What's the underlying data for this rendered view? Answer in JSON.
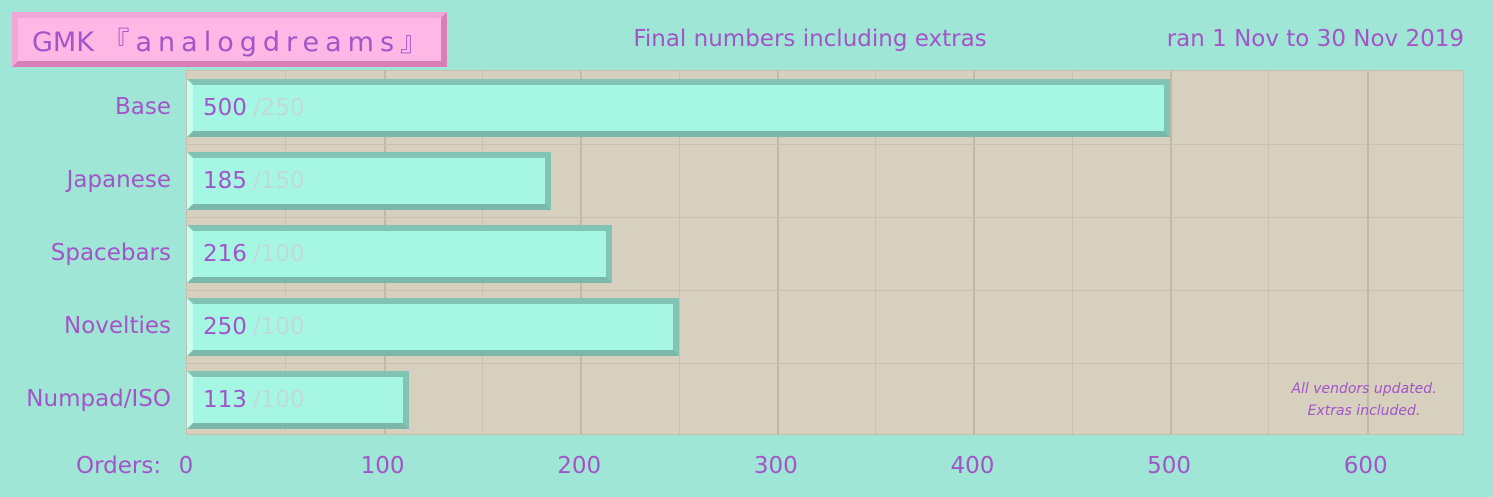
{
  "header": {
    "title_prefix": "GMK ",
    "title_name": "『analogdreams』",
    "subtitle": "Final numbers including extras",
    "date_range": "ran 1 Nov to 30 Nov 2019"
  },
  "note": {
    "line1": "All vendors updated.",
    "line2": "Extras included."
  },
  "colors": {
    "background": "#a0e6d6",
    "plot_background": "#d7d0bf",
    "bar_fill": "#a6f6e4",
    "text": "#a255c8",
    "title_badge": "#ffb8e6",
    "cap_text": "#c0dad9"
  },
  "chart_data": {
    "type": "bar",
    "orientation": "horizontal",
    "title": "GMK 『analogdreams』",
    "subtitle": "Final numbers including extras",
    "xlabel": "Orders:",
    "ylabel": "",
    "xlim": [
      0,
      650
    ],
    "xticks": [
      0,
      100,
      200,
      300,
      400,
      500,
      600
    ],
    "grid": true,
    "categories": [
      "Base",
      "Japanese",
      "Spacebars",
      "Novelties",
      "Numpad/ISO"
    ],
    "values": [
      500,
      185,
      216,
      250,
      113
    ],
    "minimums": [
      "/250",
      "/150",
      "/100",
      "/100",
      "/100"
    ]
  }
}
